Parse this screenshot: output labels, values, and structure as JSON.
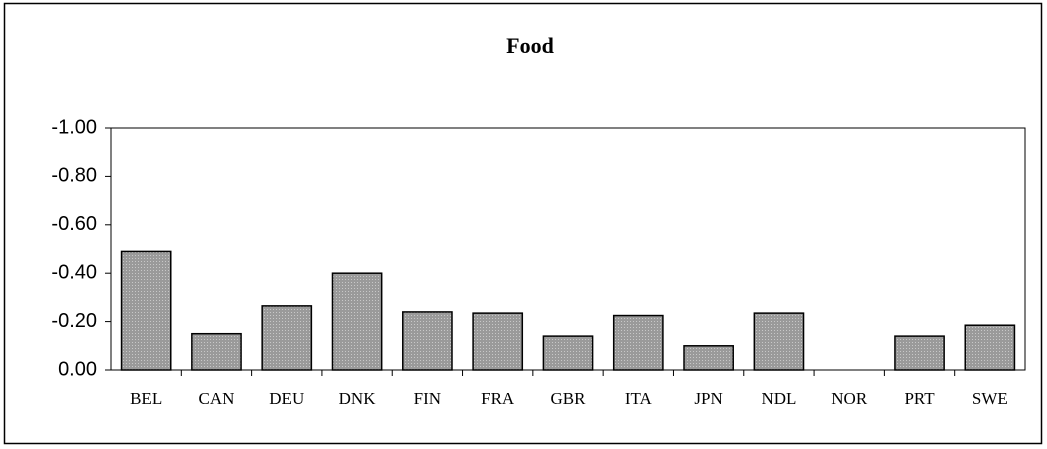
{
  "chart_data": {
    "type": "bar",
    "title": "Food",
    "categories": [
      "BEL",
      "CAN",
      "DEU",
      "DNK",
      "FIN",
      "FRA",
      "GBR",
      "ITA",
      "JPN",
      "NDL",
      "NOR",
      "PRT",
      "SWE"
    ],
    "values": [
      -0.49,
      -0.15,
      -0.265,
      -0.4,
      -0.24,
      -0.235,
      -0.14,
      -0.225,
      -0.1,
      -0.235,
      0,
      -0.14,
      -0.185
    ],
    "color": "#a6a6a6",
    "ylim": [
      0,
      -1
    ],
    "yticks": [
      {
        "value": -1,
        "label": "-1.00"
      },
      {
        "value": -0.8,
        "label": "-0.80"
      },
      {
        "value": -0.6,
        "label": "-0.60"
      },
      {
        "value": -0.4,
        "label": "-0.40"
      },
      {
        "value": -0.2,
        "label": "-0.20"
      },
      {
        "value": 0,
        "label": "0.00"
      }
    ],
    "grid": false
  }
}
